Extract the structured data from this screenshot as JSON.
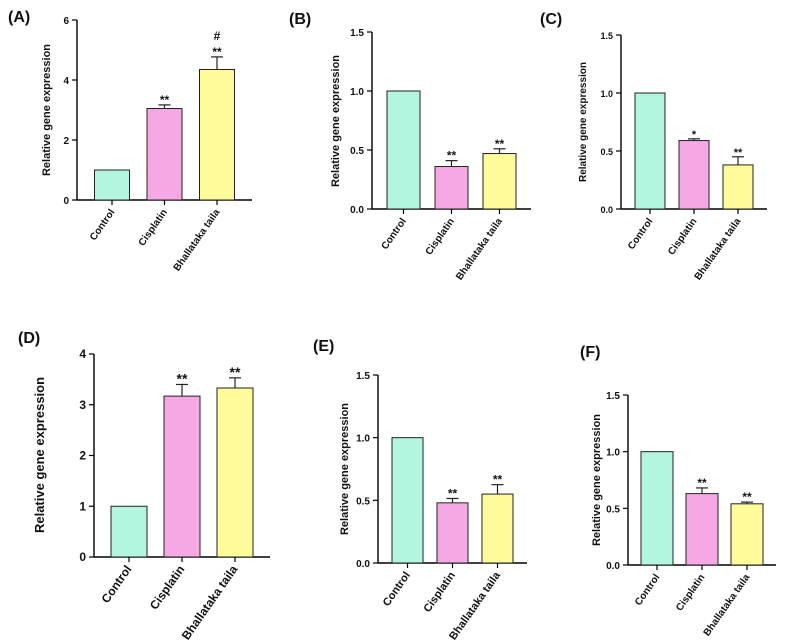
{
  "figure": {
    "category_labels": [
      "Control",
      "Cisplatin",
      "Bhallataka taila"
    ],
    "colors": {
      "Control": "#b3f5df",
      "Cisplatin": "#f5a8e3",
      "Bhallataka taila": "#fdfb9a"
    }
  },
  "chart_data": [
    {
      "panel": "(A)",
      "type": "bar",
      "categories": [
        "Control",
        "Cisplatin",
        "Bhallataka taila"
      ],
      "values": [
        1.0,
        3.05,
        4.35
      ],
      "errors": [
        0,
        0.12,
        0.42
      ],
      "significance": [
        "",
        "**",
        "**\n#"
      ],
      "ylabel": "Relative gene expression",
      "ylim": [
        0,
        6
      ],
      "yticks": [
        "0",
        "2",
        "4",
        "6"
      ]
    },
    {
      "panel": "(B)",
      "type": "bar",
      "categories": [
        "Control",
        "Cisplatin",
        "Bhallataka taila"
      ],
      "values": [
        1.0,
        0.36,
        0.47
      ],
      "errors": [
        0,
        0.05,
        0.04
      ],
      "significance": [
        "",
        "**",
        "**"
      ],
      "ylabel": "Relative gene expression",
      "ylim": [
        0,
        1.5
      ],
      "yticks": [
        "0.0",
        "0.5",
        "1.0",
        "1.5"
      ]
    },
    {
      "panel": "(C)",
      "type": "bar",
      "categories": [
        "Control",
        "Cisplatin",
        "Bhallataka taila"
      ],
      "values": [
        1.0,
        0.59,
        0.38
      ],
      "errors": [
        0,
        0.015,
        0.07
      ],
      "significance": [
        "",
        "*",
        "**"
      ],
      "ylabel": "Relative gene expression",
      "ylim": [
        0,
        1.5
      ],
      "yticks": [
        "0.0",
        "0.5",
        "1.0",
        "1.5"
      ]
    },
    {
      "panel": "(D)",
      "type": "bar",
      "categories": [
        "Control",
        "Cisplatin",
        "Bhallataka taila"
      ],
      "values": [
        1.0,
        3.17,
        3.33
      ],
      "errors": [
        0,
        0.23,
        0.2
      ],
      "significance": [
        "",
        "**",
        "**"
      ],
      "ylabel": "Relative gene expression",
      "ylim": [
        0,
        4
      ],
      "yticks": [
        "0",
        "1",
        "2",
        "3",
        "4"
      ]
    },
    {
      "panel": "(E)",
      "type": "bar",
      "categories": [
        "Control",
        "Cisplatin",
        "Bhallataka taila"
      ],
      "values": [
        1.0,
        0.48,
        0.55
      ],
      "errors": [
        0,
        0.035,
        0.075
      ],
      "significance": [
        "",
        "**",
        "**"
      ],
      "ylabel": "Relative gene expression",
      "ylim": [
        0,
        1.5
      ],
      "yticks": [
        "0.0",
        "0.5",
        "1.0",
        "1.5"
      ]
    },
    {
      "panel": "(F)",
      "type": "bar",
      "categories": [
        "Control",
        "Cisplatin",
        "Bhallataka taila"
      ],
      "values": [
        1.0,
        0.63,
        0.54
      ],
      "errors": [
        0,
        0.05,
        0.015
      ],
      "significance": [
        "",
        "**",
        "**"
      ],
      "ylabel": "Relative gene expression",
      "ylim": [
        0,
        1.5
      ],
      "yticks": [
        "0.0",
        "0.5",
        "1.0",
        "1.5"
      ]
    }
  ]
}
